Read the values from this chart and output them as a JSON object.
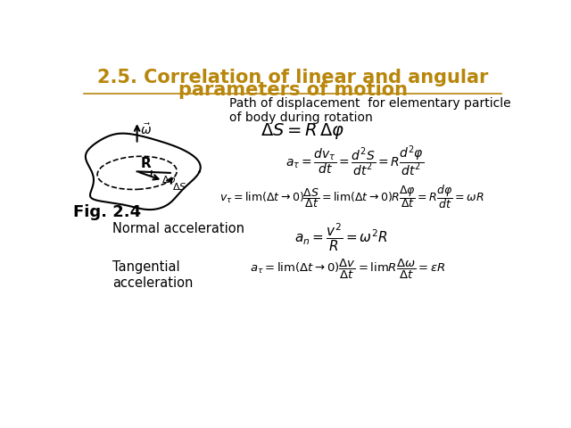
{
  "title_line1": "2.5. Correlation of linear and angular",
  "title_line2": "parameters of motion",
  "title_color": "#B8860B",
  "background_color": "#ffffff",
  "path_text": "Path of displacement  for elementary particle\nof body during rotation",
  "fig_label": "Fig. 2.4",
  "normal_label": "Normal acceleration",
  "tangential_label": "Tangential\nacceleration"
}
